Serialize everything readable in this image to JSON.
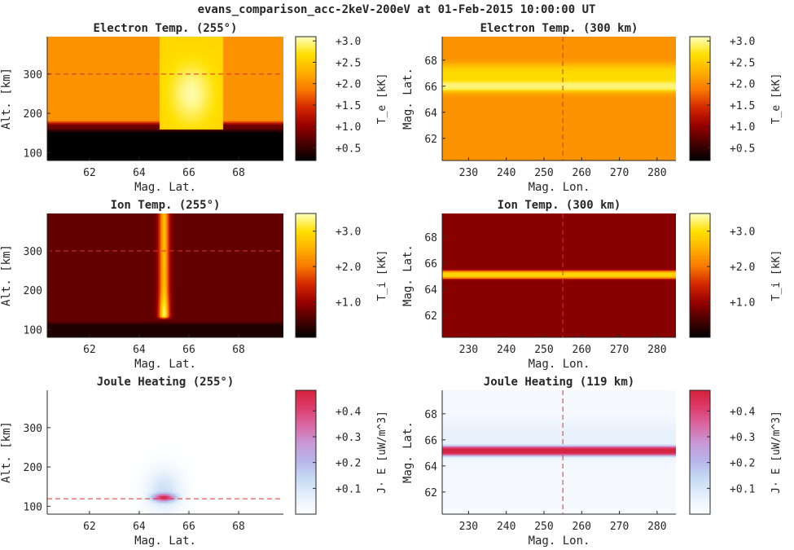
{
  "figure": {
    "title": "evans_comparison_acc-2keV-200eV at 01-Feb-2015 10:00:00 UT"
  },
  "colors": {
    "hot": [
      "#000000",
      "#4a0000",
      "#990000",
      "#d42800",
      "#f87800",
      "#ffb000",
      "#ffe000",
      "#ffffc0"
    ],
    "joule": [
      "#ffffff",
      "#e6f0fb",
      "#c6dcf5",
      "#b7b6ea",
      "#c898d6",
      "#d96aa5",
      "#dc3c6e",
      "#d4213a"
    ],
    "marker_line": "#e03030",
    "axis": "#262626"
  },
  "chart_data": [
    {
      "id": "te-alt",
      "type": "heatmap",
      "title": "Electron Temp. (255°)",
      "xlabel": "Mag. Lat.",
      "ylabel": "Alt. [km]",
      "xlim": [
        60.3,
        69.8
      ],
      "ylim": [
        80,
        395
      ],
      "xticks": [
        62,
        64,
        66,
        68
      ],
      "yticks": [
        100,
        200,
        300
      ],
      "colormap": "hot",
      "clim": [
        0.2,
        3.1
      ],
      "colorbar": {
        "label": "T_e [kK]",
        "ticks": [
          0.5,
          1.0,
          1.5,
          2.0,
          2.5,
          3.0
        ],
        "tick_labels": [
          "+0.5",
          "+1.0",
          "+1.5",
          "+2.0",
          "+2.5",
          "+3.0"
        ]
      },
      "marker": {
        "orientation": "horizontal",
        "value": 300
      },
      "fields": [
        {
          "kind": "layer",
          "axis": "y",
          "edges": [
            80,
            150,
            170,
            395
          ],
          "values": [
            0.2,
            0.8,
            2.05
          ]
        },
        {
          "kind": "patch",
          "x": [
            64.8,
            67.4
          ],
          "y": [
            160,
            395
          ],
          "value": 2.6,
          "peak": 3.05,
          "center": [
            66.1,
            250
          ]
        }
      ]
    },
    {
      "id": "te-map",
      "type": "heatmap",
      "title": "Electron Temp. (300 km)",
      "xlabel": "Mag. Lon.",
      "ylabel": "Mag. Lat.",
      "xlim": [
        223,
        285
      ],
      "ylim": [
        60.3,
        69.8
      ],
      "xticks": [
        230,
        240,
        250,
        260,
        270,
        280
      ],
      "yticks": [
        62,
        64,
        66,
        68
      ],
      "colormap": "hot",
      "clim": [
        0.2,
        3.1
      ],
      "colorbar": {
        "label": "T_e [kK]",
        "ticks": [
          0.5,
          1.0,
          1.5,
          2.0,
          2.5,
          3.0
        ],
        "tick_labels": [
          "+0.5",
          "+1.0",
          "+1.5",
          "+2.0",
          "+2.5",
          "+3.0"
        ]
      },
      "marker": {
        "orientation": "vertical",
        "value": 255
      },
      "fields": [
        {
          "kind": "base",
          "value": 2.05
        },
        {
          "kind": "band",
          "axis": "y",
          "center": 66.6,
          "halfwidth": 1.1,
          "value": 2.65
        },
        {
          "kind": "band",
          "axis": "y",
          "center": 66.0,
          "halfwidth": 0.35,
          "value": 2.95
        }
      ]
    },
    {
      "id": "ti-alt",
      "type": "heatmap",
      "title": "Ion Temp. (255°)",
      "xlabel": "Mag. Lat.",
      "ylabel": "Alt. [km]",
      "xlim": [
        60.3,
        69.8
      ],
      "ylim": [
        80,
        395
      ],
      "xticks": [
        62,
        64,
        66,
        68
      ],
      "yticks": [
        100,
        200,
        300
      ],
      "colormap": "hot",
      "clim": [
        0.0,
        3.5
      ],
      "colorbar": {
        "label": "T_i [kK]",
        "ticks": [
          1.0,
          2.0,
          3.0
        ],
        "tick_labels": [
          "+1.0",
          "+2.0",
          "+3.0"
        ]
      },
      "marker": {
        "orientation": "horizontal",
        "value": 300
      },
      "fields": [
        {
          "kind": "layer",
          "axis": "y",
          "edges": [
            80,
            110,
            395
          ],
          "values": [
            0.2,
            0.65
          ]
        },
        {
          "kind": "column",
          "center": 65.0,
          "halfwidth": 0.25,
          "y": [
            125,
            395
          ],
          "value": 2.6,
          "peak": 3.3,
          "peak_at": 140
        }
      ]
    },
    {
      "id": "ti-map",
      "type": "heatmap",
      "title": "Ion Temp. (300 km)",
      "xlabel": "Mag. Lon.",
      "ylabel": "Mag. Lat.",
      "xlim": [
        223,
        285
      ],
      "ylim": [
        60.3,
        69.8
      ],
      "xticks": [
        230,
        240,
        250,
        260,
        270,
        280
      ],
      "yticks": [
        62,
        64,
        66,
        68
      ],
      "colormap": "hot",
      "clim": [
        0.0,
        3.5
      ],
      "colorbar": {
        "label": "T_i [kK]",
        "ticks": [
          1.0,
          2.0,
          3.0
        ],
        "tick_labels": [
          "+1.0",
          "+2.0",
          "+3.0"
        ]
      },
      "marker": {
        "orientation": "vertical",
        "value": 255
      },
      "fields": [
        {
          "kind": "base",
          "value": 0.9
        },
        {
          "kind": "band",
          "axis": "y",
          "center": 65.1,
          "halfwidth": 0.3,
          "value": 2.9
        }
      ]
    },
    {
      "id": "jh-alt",
      "type": "heatmap",
      "title": "Joule Heating (255°)",
      "xlabel": "Mag. Lat.",
      "ylabel": "Alt. [km]",
      "xlim": [
        60.3,
        69.8
      ],
      "ylim": [
        80,
        395
      ],
      "xticks": [
        62,
        64,
        66,
        68
      ],
      "yticks": [
        100,
        200,
        300
      ],
      "colormap": "joule",
      "clim": [
        0.0,
        0.48
      ],
      "colorbar": {
        "label": "J· E [uW/m^3]",
        "ticks": [
          0.1,
          0.2,
          0.3,
          0.4
        ],
        "tick_labels": [
          "+0.1",
          "+0.2",
          "+0.3",
          "+0.4"
        ]
      },
      "marker": {
        "orientation": "horizontal",
        "value": 119
      },
      "fields": [
        {
          "kind": "base",
          "value": 0.0
        },
        {
          "kind": "blob",
          "center": [
            65.0,
            140
          ],
          "radius": [
            0.9,
            70
          ],
          "value": 0.12
        },
        {
          "kind": "blob",
          "center": [
            65.0,
            122
          ],
          "radius": [
            0.55,
            12
          ],
          "value": 0.47
        }
      ]
    },
    {
      "id": "jh-map",
      "type": "heatmap",
      "title": "Joule Heating (119 km)",
      "xlabel": "Mag. Lon.",
      "ylabel": "Mag. Lat.",
      "xlim": [
        223,
        285
      ],
      "ylim": [
        60.3,
        69.8
      ],
      "xticks": [
        230,
        240,
        250,
        260,
        270,
        280
      ],
      "yticks": [
        62,
        64,
        66,
        68
      ],
      "colormap": "joule",
      "clim": [
        0.0,
        0.48
      ],
      "colorbar": {
        "label": "J· E [uW/m^3]",
        "ticks": [
          0.1,
          0.2,
          0.3,
          0.4
        ],
        "tick_labels": [
          "+0.1",
          "+0.2",
          "+0.3",
          "+0.4"
        ]
      },
      "marker": {
        "orientation": "vertical",
        "value": 255
      },
      "fields": [
        {
          "kind": "base",
          "value": 0.025
        },
        {
          "kind": "band",
          "axis": "y",
          "center": 65.9,
          "halfwidth": 1.6,
          "value": 0.06
        },
        {
          "kind": "band",
          "axis": "y",
          "center": 65.15,
          "halfwidth": 0.38,
          "value": 0.47
        }
      ]
    }
  ]
}
